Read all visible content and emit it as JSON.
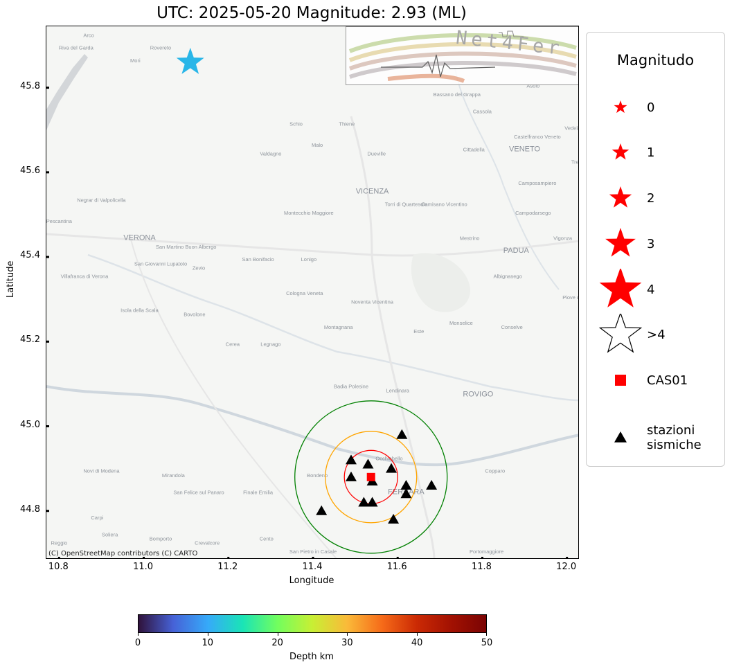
{
  "title": "UTC: 2025-05-20 Magnitude: 2.93 (ML)",
  "map": {
    "attribution": "(C) OpenStreetMap contributors (C) CARTO",
    "logo_text": "Net4Fer",
    "xlabel": "Longitude",
    "ylabel": "Latitude",
    "xlim": [
      10.77,
      12.03
    ],
    "ylim": [
      44.685,
      45.945
    ],
    "xticks": [
      "10.8",
      "11.0",
      "11.2",
      "11.4",
      "11.6",
      "11.8",
      "12.0"
    ],
    "yticks": [
      "44.8",
      "45.0",
      "45.2",
      "45.4",
      "45.6",
      "45.8"
    ],
    "place_labels": [
      {
        "name": "Arco",
        "lon": 10.87,
        "lat": 45.92
      },
      {
        "name": "Riva del Garda",
        "lon": 10.84,
        "lat": 45.89
      },
      {
        "name": "Rovereto",
        "lon": 11.04,
        "lat": 45.89
      },
      {
        "name": "Mori",
        "lon": 10.98,
        "lat": 45.86
      },
      {
        "name": "Schio",
        "lon": 11.36,
        "lat": 45.71
      },
      {
        "name": "Thiene",
        "lon": 11.48,
        "lat": 45.71
      },
      {
        "name": "Malo",
        "lon": 11.41,
        "lat": 45.66
      },
      {
        "name": "Valdagno",
        "lon": 11.3,
        "lat": 45.64
      },
      {
        "name": "Dueville",
        "lon": 11.55,
        "lat": 45.64
      },
      {
        "name": "Bassano del Grappa",
        "lon": 11.74,
        "lat": 45.78
      },
      {
        "name": "Cassola",
        "lon": 11.8,
        "lat": 45.74
      },
      {
        "name": "Asolo",
        "lon": 11.92,
        "lat": 45.8
      },
      {
        "name": "Cittadella",
        "lon": 11.78,
        "lat": 45.65
      },
      {
        "name": "VENETO",
        "lon": 11.9,
        "lat": 45.65
      },
      {
        "name": "Castelfranco Veneto",
        "lon": 11.93,
        "lat": 45.68
      },
      {
        "name": "Vedelago",
        "lon": 12.02,
        "lat": 45.7
      },
      {
        "name": "VICENZA",
        "lon": 11.54,
        "lat": 45.55
      },
      {
        "name": "Torri di Quartesolo",
        "lon": 11.62,
        "lat": 45.52
      },
      {
        "name": "Camisano Vicentino",
        "lon": 11.71,
        "lat": 45.52
      },
      {
        "name": "Camposampiero",
        "lon": 11.93,
        "lat": 45.57
      },
      {
        "name": "Campodarsego",
        "lon": 11.92,
        "lat": 45.5
      },
      {
        "name": "Negrar di Valpolicella",
        "lon": 10.9,
        "lat": 45.53
      },
      {
        "name": "Pescantina",
        "lon": 10.8,
        "lat": 45.48
      },
      {
        "name": "Montecchio Maggiore",
        "lon": 11.39,
        "lat": 45.5
      },
      {
        "name": "VERONA",
        "lon": 10.99,
        "lat": 45.44
      },
      {
        "name": "San Martino Buon Albergo",
        "lon": 11.1,
        "lat": 45.42
      },
      {
        "name": "San Giovanni Lupatoto",
        "lon": 11.04,
        "lat": 45.38
      },
      {
        "name": "Zevio",
        "lon": 11.13,
        "lat": 45.37
      },
      {
        "name": "San Bonifacio",
        "lon": 11.27,
        "lat": 45.39
      },
      {
        "name": "Lonigo",
        "lon": 11.39,
        "lat": 45.39
      },
      {
        "name": "Mestrino",
        "lon": 11.77,
        "lat": 45.44
      },
      {
        "name": "PADUA",
        "lon": 11.88,
        "lat": 45.41
      },
      {
        "name": "Vigonza",
        "lon": 11.99,
        "lat": 45.44
      },
      {
        "name": "Villafranca di Verona",
        "lon": 10.86,
        "lat": 45.35
      },
      {
        "name": "Albignasego",
        "lon": 11.86,
        "lat": 45.35
      },
      {
        "name": "Cologna Veneta",
        "lon": 11.38,
        "lat": 45.31
      },
      {
        "name": "Noventa Vicentina",
        "lon": 11.54,
        "lat": 45.29
      },
      {
        "name": "Piove di Sacco",
        "lon": 12.03,
        "lat": 45.3
      },
      {
        "name": "Isola della Scala",
        "lon": 10.99,
        "lat": 45.27
      },
      {
        "name": "Bovolone",
        "lon": 11.12,
        "lat": 45.26
      },
      {
        "name": "Montagnana",
        "lon": 11.46,
        "lat": 45.23
      },
      {
        "name": "Monselice",
        "lon": 11.75,
        "lat": 45.24
      },
      {
        "name": "Conselve",
        "lon": 11.87,
        "lat": 45.23
      },
      {
        "name": "Este",
        "lon": 11.65,
        "lat": 45.22
      },
      {
        "name": "Cerea",
        "lon": 11.21,
        "lat": 45.19
      },
      {
        "name": "Legnago",
        "lon": 11.3,
        "lat": 45.19
      },
      {
        "name": "Badia Polesine",
        "lon": 11.49,
        "lat": 45.09
      },
      {
        "name": "Lendinara",
        "lon": 11.6,
        "lat": 45.08
      },
      {
        "name": "ROVIGO",
        "lon": 11.79,
        "lat": 45.07
      },
      {
        "name": "Occhiobello",
        "lon": 11.58,
        "lat": 44.92
      },
      {
        "name": "Bondeno",
        "lon": 11.41,
        "lat": 44.88
      },
      {
        "name": "FERRARA",
        "lon": 11.62,
        "lat": 44.84
      },
      {
        "name": "Copparo",
        "lon": 11.83,
        "lat": 44.89
      },
      {
        "name": "Novi di Modena",
        "lon": 10.9,
        "lat": 44.89
      },
      {
        "name": "Mirandola",
        "lon": 11.07,
        "lat": 44.88
      },
      {
        "name": "San Felice sul Panaro",
        "lon": 11.13,
        "lat": 44.84
      },
      {
        "name": "Finale Emilia",
        "lon": 11.27,
        "lat": 44.84
      },
      {
        "name": "Carpi",
        "lon": 10.89,
        "lat": 44.78
      },
      {
        "name": "Soliera",
        "lon": 10.92,
        "lat": 44.74
      },
      {
        "name": "Bomporto",
        "lon": 11.04,
        "lat": 44.73
      },
      {
        "name": "Crevalcore",
        "lon": 11.15,
        "lat": 44.72
      },
      {
        "name": "Cento",
        "lon": 11.29,
        "lat": 44.73
      },
      {
        "name": "San Pietro in Casale",
        "lon": 11.4,
        "lat": 44.7
      },
      {
        "name": "Portomaggiore",
        "lon": 11.81,
        "lat": 44.7
      },
      {
        "name": "Treviso",
        "lon": 12.03,
        "lat": 45.62
      },
      {
        "name": "Reggio",
        "lon": 10.8,
        "lat": 44.72
      }
    ],
    "epicenter": {
      "lon": 11.11,
      "lat": 45.86,
      "depth_km": 12,
      "color": "#29b6e8"
    },
    "main_station": {
      "name": "CAS01",
      "lon": 11.537,
      "lat": 44.88,
      "color": "#ff0000"
    },
    "circles": [
      {
        "radius_deg": 0.063,
        "color": "#ff0000"
      },
      {
        "radius_deg": 0.108,
        "color": "#ffa500"
      },
      {
        "radius_deg": 0.18,
        "color": "#008000"
      }
    ],
    "stations": [
      {
        "lon": 11.61,
        "lat": 44.98
      },
      {
        "lon": 11.49,
        "lat": 44.92
      },
      {
        "lon": 11.53,
        "lat": 44.91
      },
      {
        "lon": 11.585,
        "lat": 44.9
      },
      {
        "lon": 11.49,
        "lat": 44.88
      },
      {
        "lon": 11.54,
        "lat": 44.87
      },
      {
        "lon": 11.62,
        "lat": 44.86
      },
      {
        "lon": 11.68,
        "lat": 44.86
      },
      {
        "lon": 11.62,
        "lat": 44.84
      },
      {
        "lon": 11.52,
        "lat": 44.82
      },
      {
        "lon": 11.54,
        "lat": 44.82
      },
      {
        "lon": 11.42,
        "lat": 44.8
      },
      {
        "lon": 11.59,
        "lat": 44.78
      }
    ]
  },
  "legend": {
    "title": "Magnitudo",
    "items": [
      {
        "label": "0",
        "symbol": "star",
        "color": "#ff0000",
        "size": 10
      },
      {
        "label": "1",
        "symbol": "star",
        "color": "#ff0000",
        "size": 13
      },
      {
        "label": "2",
        "symbol": "star",
        "color": "#ff0000",
        "size": 17
      },
      {
        "label": "3",
        "symbol": "star",
        "color": "#ff0000",
        "size": 23
      },
      {
        "label": "4",
        "symbol": "star",
        "color": "#ff0000",
        "size": 32
      },
      {
        "label": ">4",
        "symbol": "star-outline",
        "color": "#000000",
        "size": 31
      },
      {
        "label": "CAS01",
        "symbol": "square",
        "color": "#ff0000",
        "size": 8
      },
      {
        "label": "stazioni\nsismiche",
        "symbol": "triangle",
        "color": "#000000",
        "size": 9
      }
    ]
  },
  "colorbar": {
    "label": "Depth km",
    "ticks": [
      "0",
      "10",
      "20",
      "30",
      "40",
      "50"
    ],
    "range": [
      0,
      50
    ],
    "colormap": "turbo"
  }
}
